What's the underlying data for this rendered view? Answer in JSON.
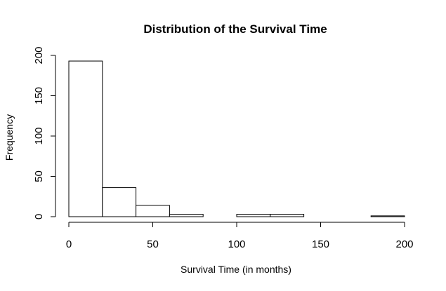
{
  "chart_data": {
    "type": "bar",
    "title": "Distribution of the Survival Time",
    "xlabel": "Survival Time (in months)",
    "ylabel": "Frequency",
    "bins": [
      {
        "from": 0,
        "to": 20,
        "count": 193
      },
      {
        "from": 20,
        "to": 40,
        "count": 36
      },
      {
        "from": 40,
        "to": 60,
        "count": 14
      },
      {
        "from": 60,
        "to": 80,
        "count": 3
      },
      {
        "from": 80,
        "to": 100,
        "count": 0
      },
      {
        "from": 100,
        "to": 120,
        "count": 3
      },
      {
        "from": 120,
        "to": 140,
        "count": 3
      },
      {
        "from": 140,
        "to": 160,
        "count": 0
      },
      {
        "from": 160,
        "to": 180,
        "count": 0
      },
      {
        "from": 180,
        "to": 200,
        "count": 1
      }
    ],
    "x_ticks": [
      0,
      50,
      100,
      150,
      200
    ],
    "y_ticks": [
      0,
      50,
      100,
      150,
      200
    ],
    "xlim": [
      0,
      200
    ],
    "ylim": [
      0,
      200
    ],
    "grid": false,
    "legend": "none",
    "colors": {
      "bar_fill": "#ffffff",
      "bar_stroke": "#000000"
    }
  }
}
